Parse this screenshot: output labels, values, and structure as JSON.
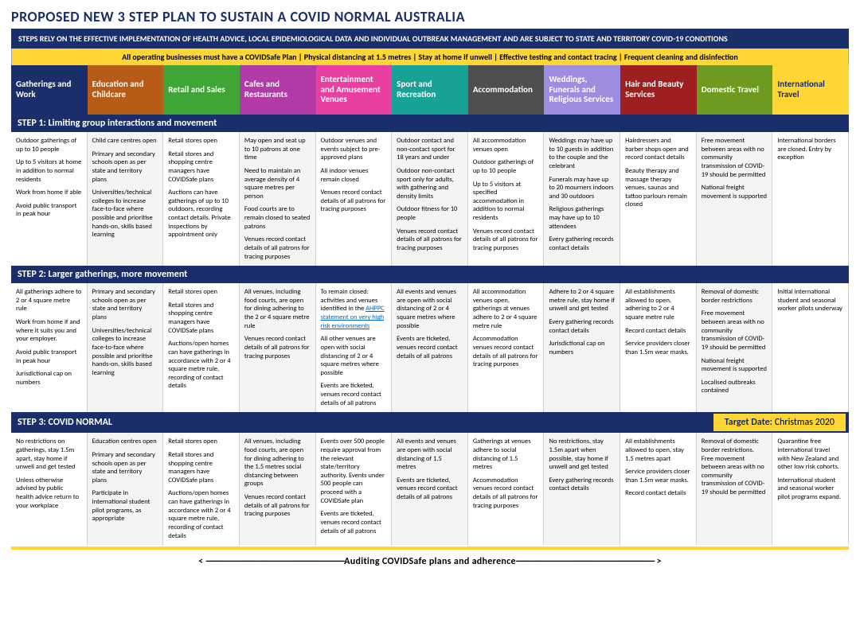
{
  "title": "PROPOSED NEW 3 STEP PLAN TO SUSTAIN A COVID NORMAL AUSTRALIA",
  "subtitle": "STEPS RELY ON THE EFFECTIVE IMPLEMENTATION OF HEALTH ADVICE, LOCAL EPIDEMIOLOGICAL DATA AND INDIVIDUAL OUTBREAK MANAGEMENT AND ARE SUBJECT TO STATE AND TERRITORY COVID-19 CONDITIONS",
  "yellow_rules": "All operating businesses must have a COVIDSafe Plan   |   Physical distancing at 1.5 metres   |   Stay at home if unwell   |   Effective testing and contact tracing   |   Frequent cleaning and disinfection",
  "columns": [
    {
      "label": "Gatherings and Work",
      "color": "#1a2f6a"
    },
    {
      "label": "Education and Childcare",
      "color": "#b85b17"
    },
    {
      "label": "Retail and Sales",
      "color": "#3fa535"
    },
    {
      "label": "Cafes and Restaurants",
      "color": "#b23aa6"
    },
    {
      "label": "Entertainment and Amusement Venues",
      "color": "#e83fa0"
    },
    {
      "label": "Sport and Recreation",
      "color": "#17a296"
    },
    {
      "label": "Accommodation",
      "color": "#4e4e4e"
    },
    {
      "label": "Weddings, Funerals and Religious Services",
      "color": "#9e8de0"
    },
    {
      "label": "Hair and Beauty Services",
      "color": "#9e1f1f"
    },
    {
      "label": "Domestic Travel",
      "color": "#6e9a1f"
    },
    {
      "label": "International Travel",
      "color": "#ffd633",
      "text": "#1a2f6a"
    }
  ],
  "step1": {
    "title": "STEP 1: Limiting group interactions and movement",
    "cells": [
      [
        "Outdoor gatherings of up to 10 people",
        "Up to 5 visitors at home in addition to normal residents",
        "Work from home if able",
        "Avoid public transport in peak hour"
      ],
      [
        "Child care centres open",
        "Primary and secondary schools open as per state and territory plans",
        "Universities/technical colleges to increase face-to-face where possible and prioritise hands-on, skills based learning"
      ],
      [
        "Retail stores open",
        "Retail stores and shopping centre managers have COVIDSafe plans",
        "Auctions can have gatherings of up to 10 outdoors, recording contact details. Private inspections by appointment only"
      ],
      [
        "May open and seat up to 10 patrons at one time",
        "Need to maintain an average density of 4 square metres per person",
        "Food courts are to remain closed to seated patrons",
        "Venues record contact details of all patrons for tracing purposes"
      ],
      [
        "Outdoor venues and events subject to pre-approved plans",
        "All indoor venues remain closed",
        "Venues record contact details of all patrons for tracing purposes"
      ],
      [
        "Outdoor contact and non-contact sport for 18 years and under",
        "Outdoor non-contact sport only for adults, with gathering and density limits",
        "Outdoor fitness for 10 people",
        "Venues record contact details of all patrons for tracing purposes"
      ],
      [
        "All accommodation venues open",
        "Outdoor gatherings of up to 10 people",
        "Up to 5 visitors at specified accommodation in addition to normal residents",
        "Venues record contact details of all patrons for tracing purposes"
      ],
      [
        "Weddings may have up to 10 guests in addition to the couple and the celebrant",
        "Funerals may have up to 20 mourners indoors and 30 outdoors",
        "Religious gatherings may have up to 10 attendees",
        "Every gathering records contact details"
      ],
      [
        "Hairdressers and barber shops open and record contact details",
        "Beauty therapy and massage therapy venues, saunas and tattoo parlours remain closed"
      ],
      [
        "Free movement between areas with no community transmission of COVID-19 should be permitted",
        "National freight movement is supported"
      ],
      [
        "International borders are closed. Entry by exception"
      ]
    ]
  },
  "step2": {
    "title": "STEP 2: Larger gatherings, more movement",
    "cells": [
      [
        "All gatherings adhere to 2 or 4 square metre rule",
        "Work from home if and where it suits you and your employer.",
        "Avoid public transport in peak hour",
        "Jurisdictional cap on numbers"
      ],
      [
        "Primary and secondary schools open as per state and territory plans",
        "Universities/technical colleges to increase face-to-face where possible and prioritise hands-on, skills based learning"
      ],
      [
        "Retail stores open",
        "Retail stores and shopping centre managers have COVIDSafe plans",
        "Auctions/open homes can have gatherings in accordance with 2 or 4 square metre rule, recording of contact details"
      ],
      [
        "All venues, including food courts, are open for dining adhering to the 2 or 4 square metre rule",
        "Venues record contact details of all patrons for tracing purposes"
      ],
      [
        "To remain closed: activities and venues identified in the <a href='#'>AHPPC statement on very high risk environments</a>",
        "All other venues are open with social distancing of 2 or 4 square metres where possible",
        "Events are ticketed, venues record contact details of all patrons"
      ],
      [
        "All events and venues are open with social distancing of 2 or 4 square metres where possible",
        "Events are ticketed, venues record contact details of all patrons"
      ],
      [
        "All accommodation venues open, gatherings at venues adhere to 2 or 4 square metre rule",
        "Accommodation venues record contact details of all patrons for tracing purposes"
      ],
      [
        "Adhere to 2 or 4 square metre rule, stay home if unwell and get tested",
        "Every gathering records contact details",
        "Jurisdictional cap on numbers"
      ],
      [
        "All establishments allowed to open, adhering to 2 or 4 square metre rule",
        "Record contact details",
        "Service providers closer than 1.5m wear masks."
      ],
      [
        "Removal of domestic border restrictions",
        "Free movement between areas with no community transmission of COVID-19 should be permitted",
        "National freight movement is supported",
        "Localised outbreaks contained"
      ],
      [
        "Initial international student and seasonal worker pilots underway"
      ]
    ]
  },
  "step3": {
    "title": "STEP 3:  COVID NORMAL",
    "target_label": "Target Date:",
    "target_date": "Christmas 2020",
    "cells": [
      [
        "No restrictions on gatherings, stay 1.5m apart, stay home if unwell and get tested",
        "Unless otherwise advised by public health advice return to your workplace"
      ],
      [
        "Education centres open",
        "Primary and secondary schools open as per state and territory plans",
        "Participate in international student pilot programs, as appropriate"
      ],
      [
        "Retail stores open",
        "Retail stores and shopping centre managers have COVIDSafe plans",
        "Auctions/open homes can have gatherings in accordance with 2 or 4 square metre rule, recording of contact details"
      ],
      [
        "All venues, including food courts, are open for dining adhering to the 1.5 metres social distancing between groups",
        "Venues record contact details of all patrons for tracing purposes"
      ],
      [
        "Events over 500 people require approval from the relevant state/territory authority. Events under 500 people can proceed with a COVIDSafe plan",
        "Events are ticketed, venues record contact details of all patrons"
      ],
      [
        "All events and venues are open with social distancing of 1.5 metres",
        "Events are ticketed, venues record contact details of all patrons"
      ],
      [
        "Gatherings at venues adhere to social distancing of 1.5 metres",
        "Accommodation venues record contact details of all patrons for tracing purposes"
      ],
      [
        "No restrictions, stay 1.5m apart when possible, stay home if unwell and get tested",
        "Every gathering records contact details"
      ],
      [
        "All establishments allowed to open, stay 1.5 metres apart",
        "Service providers closer than 1.5m wear masks.",
        "Record contact details"
      ],
      [
        "Removal of domestic border restrictions. Free movement between areas with no community transmission of COVID-19 should be permitted"
      ],
      [
        "Quarantine free international travel with New Zealand and other low risk cohorts.",
        "International student and seasonal worker pilot programs expand."
      ]
    ]
  },
  "audit": "Auditing COVIDSafe plans and adherence",
  "dashes": "-----------------------------------------------------------------"
}
